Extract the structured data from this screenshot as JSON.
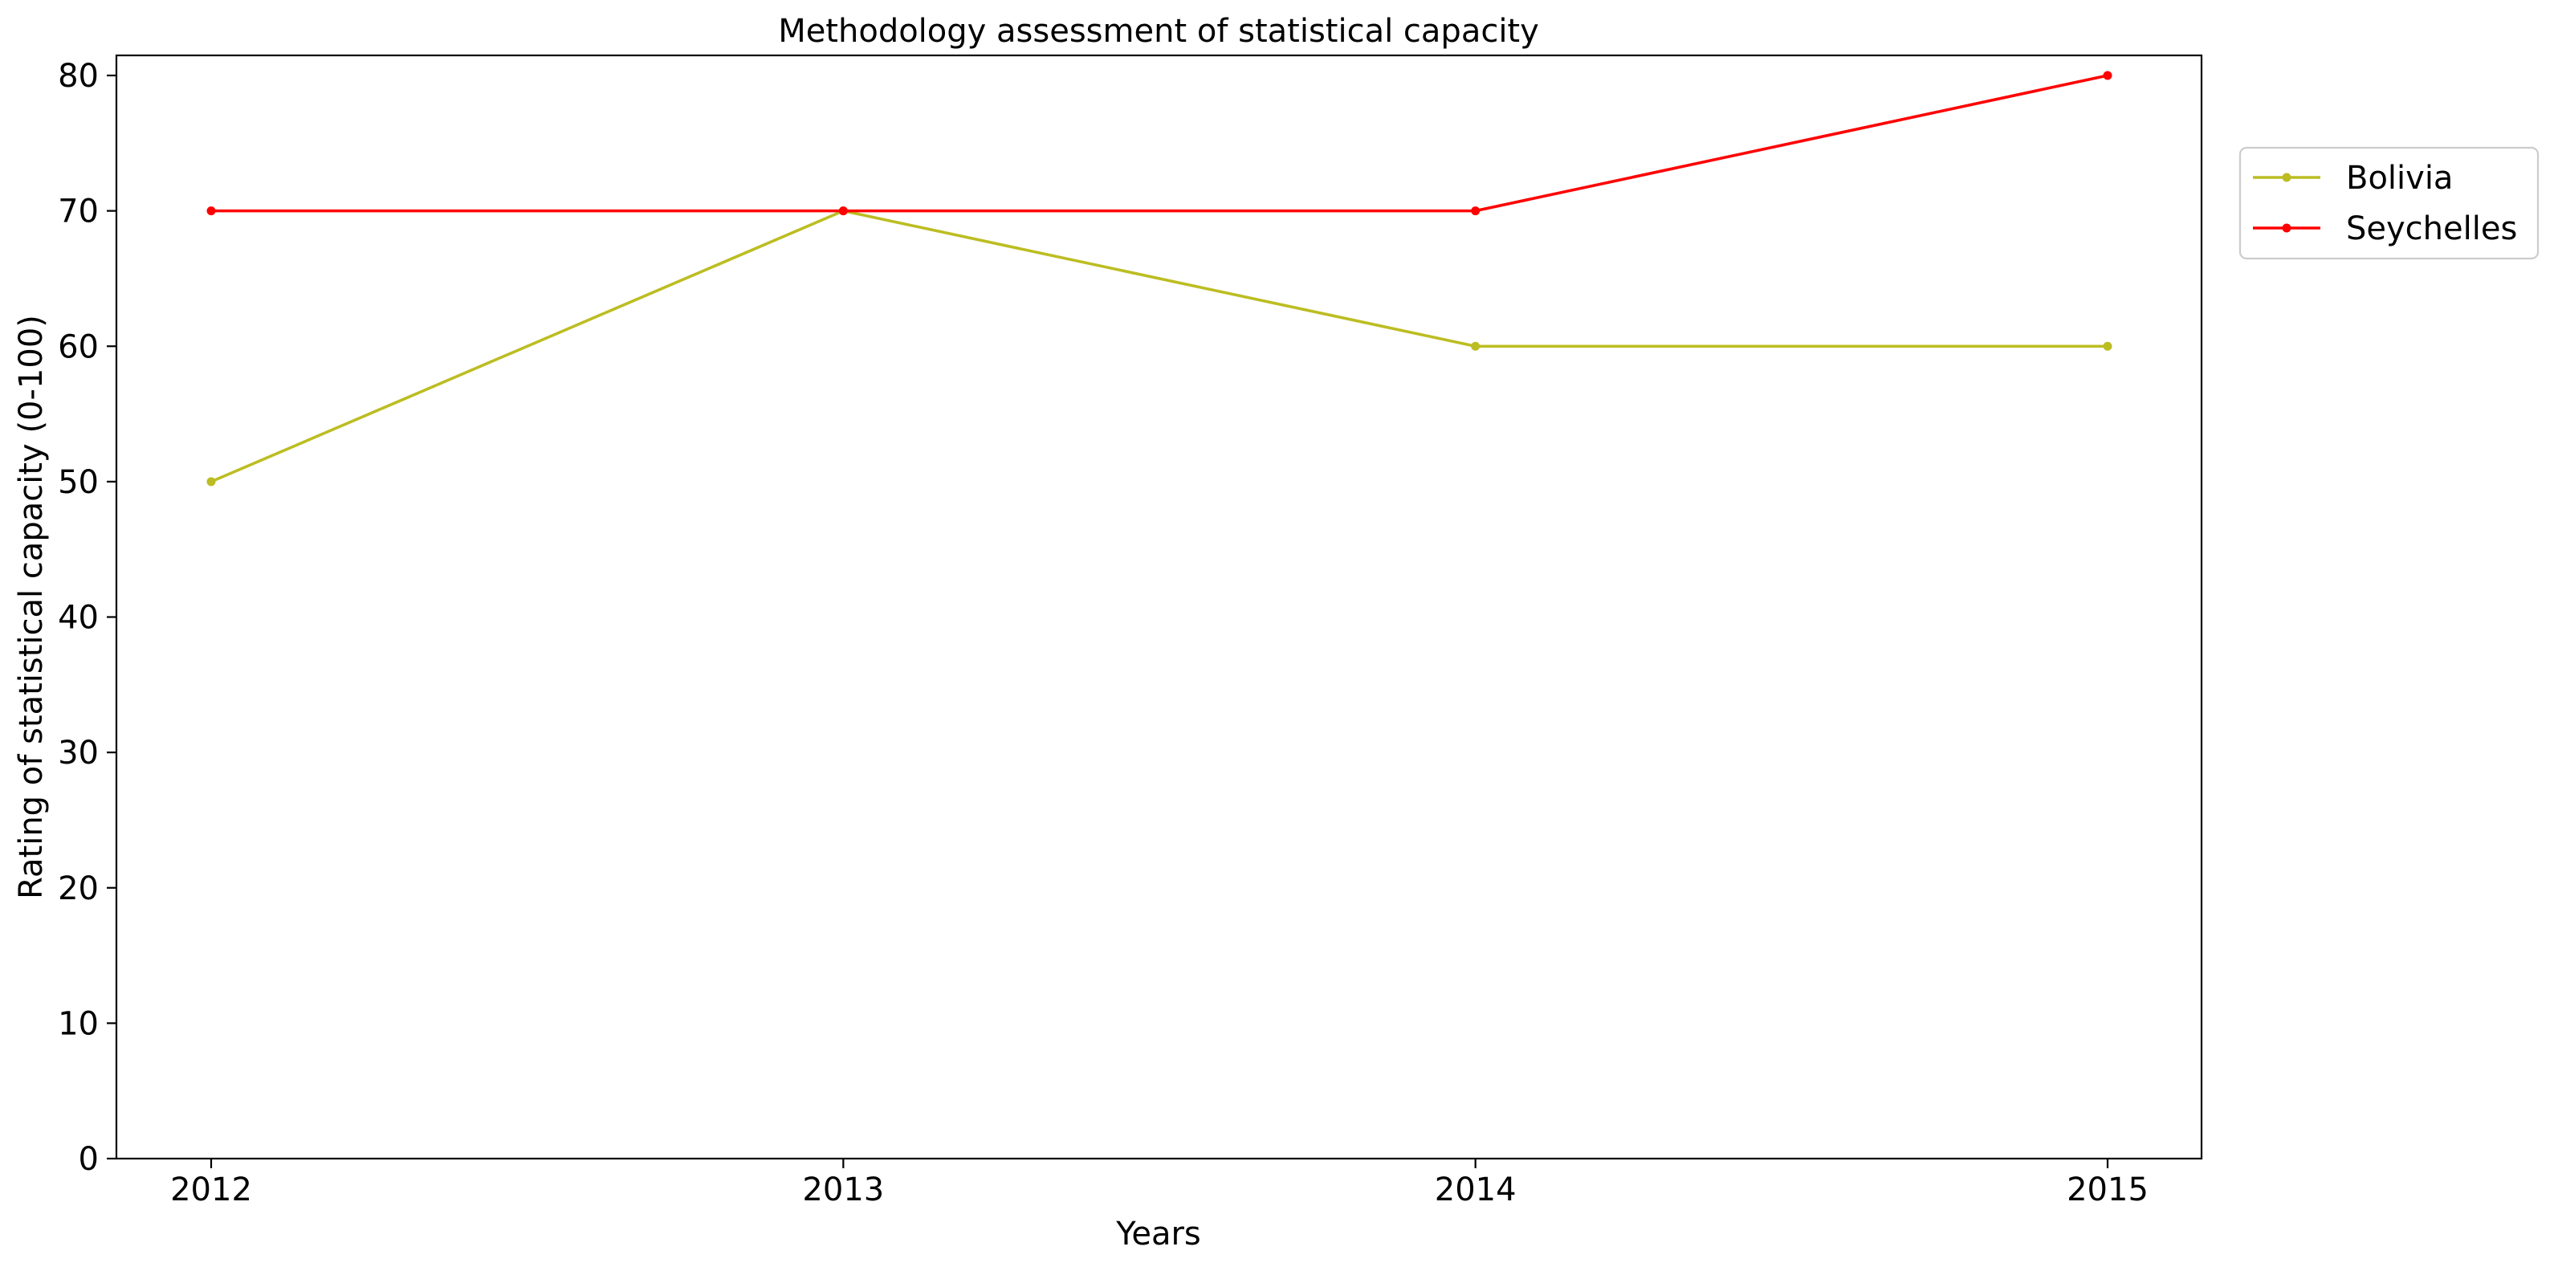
{
  "chart_data": {
    "type": "line",
    "title": "Methodology assessment of statistical capacity",
    "xlabel": "Years",
    "ylabel": "Rating of statistical capacity (0-100)",
    "categories": [
      "2012",
      "2013",
      "2014",
      "2015"
    ],
    "ylim": [
      0,
      80
    ],
    "yticks": [
      0,
      10,
      20,
      30,
      40,
      50,
      60,
      70,
      80
    ],
    "grid": false,
    "legend_position": "right",
    "series": [
      {
        "name": "Bolivia",
        "color": "#bcbd22",
        "values": [
          50,
          70,
          60,
          60
        ]
      },
      {
        "name": "Seychelles",
        "color": "#ff0000",
        "values": [
          70,
          70,
          70,
          80
        ]
      }
    ]
  }
}
